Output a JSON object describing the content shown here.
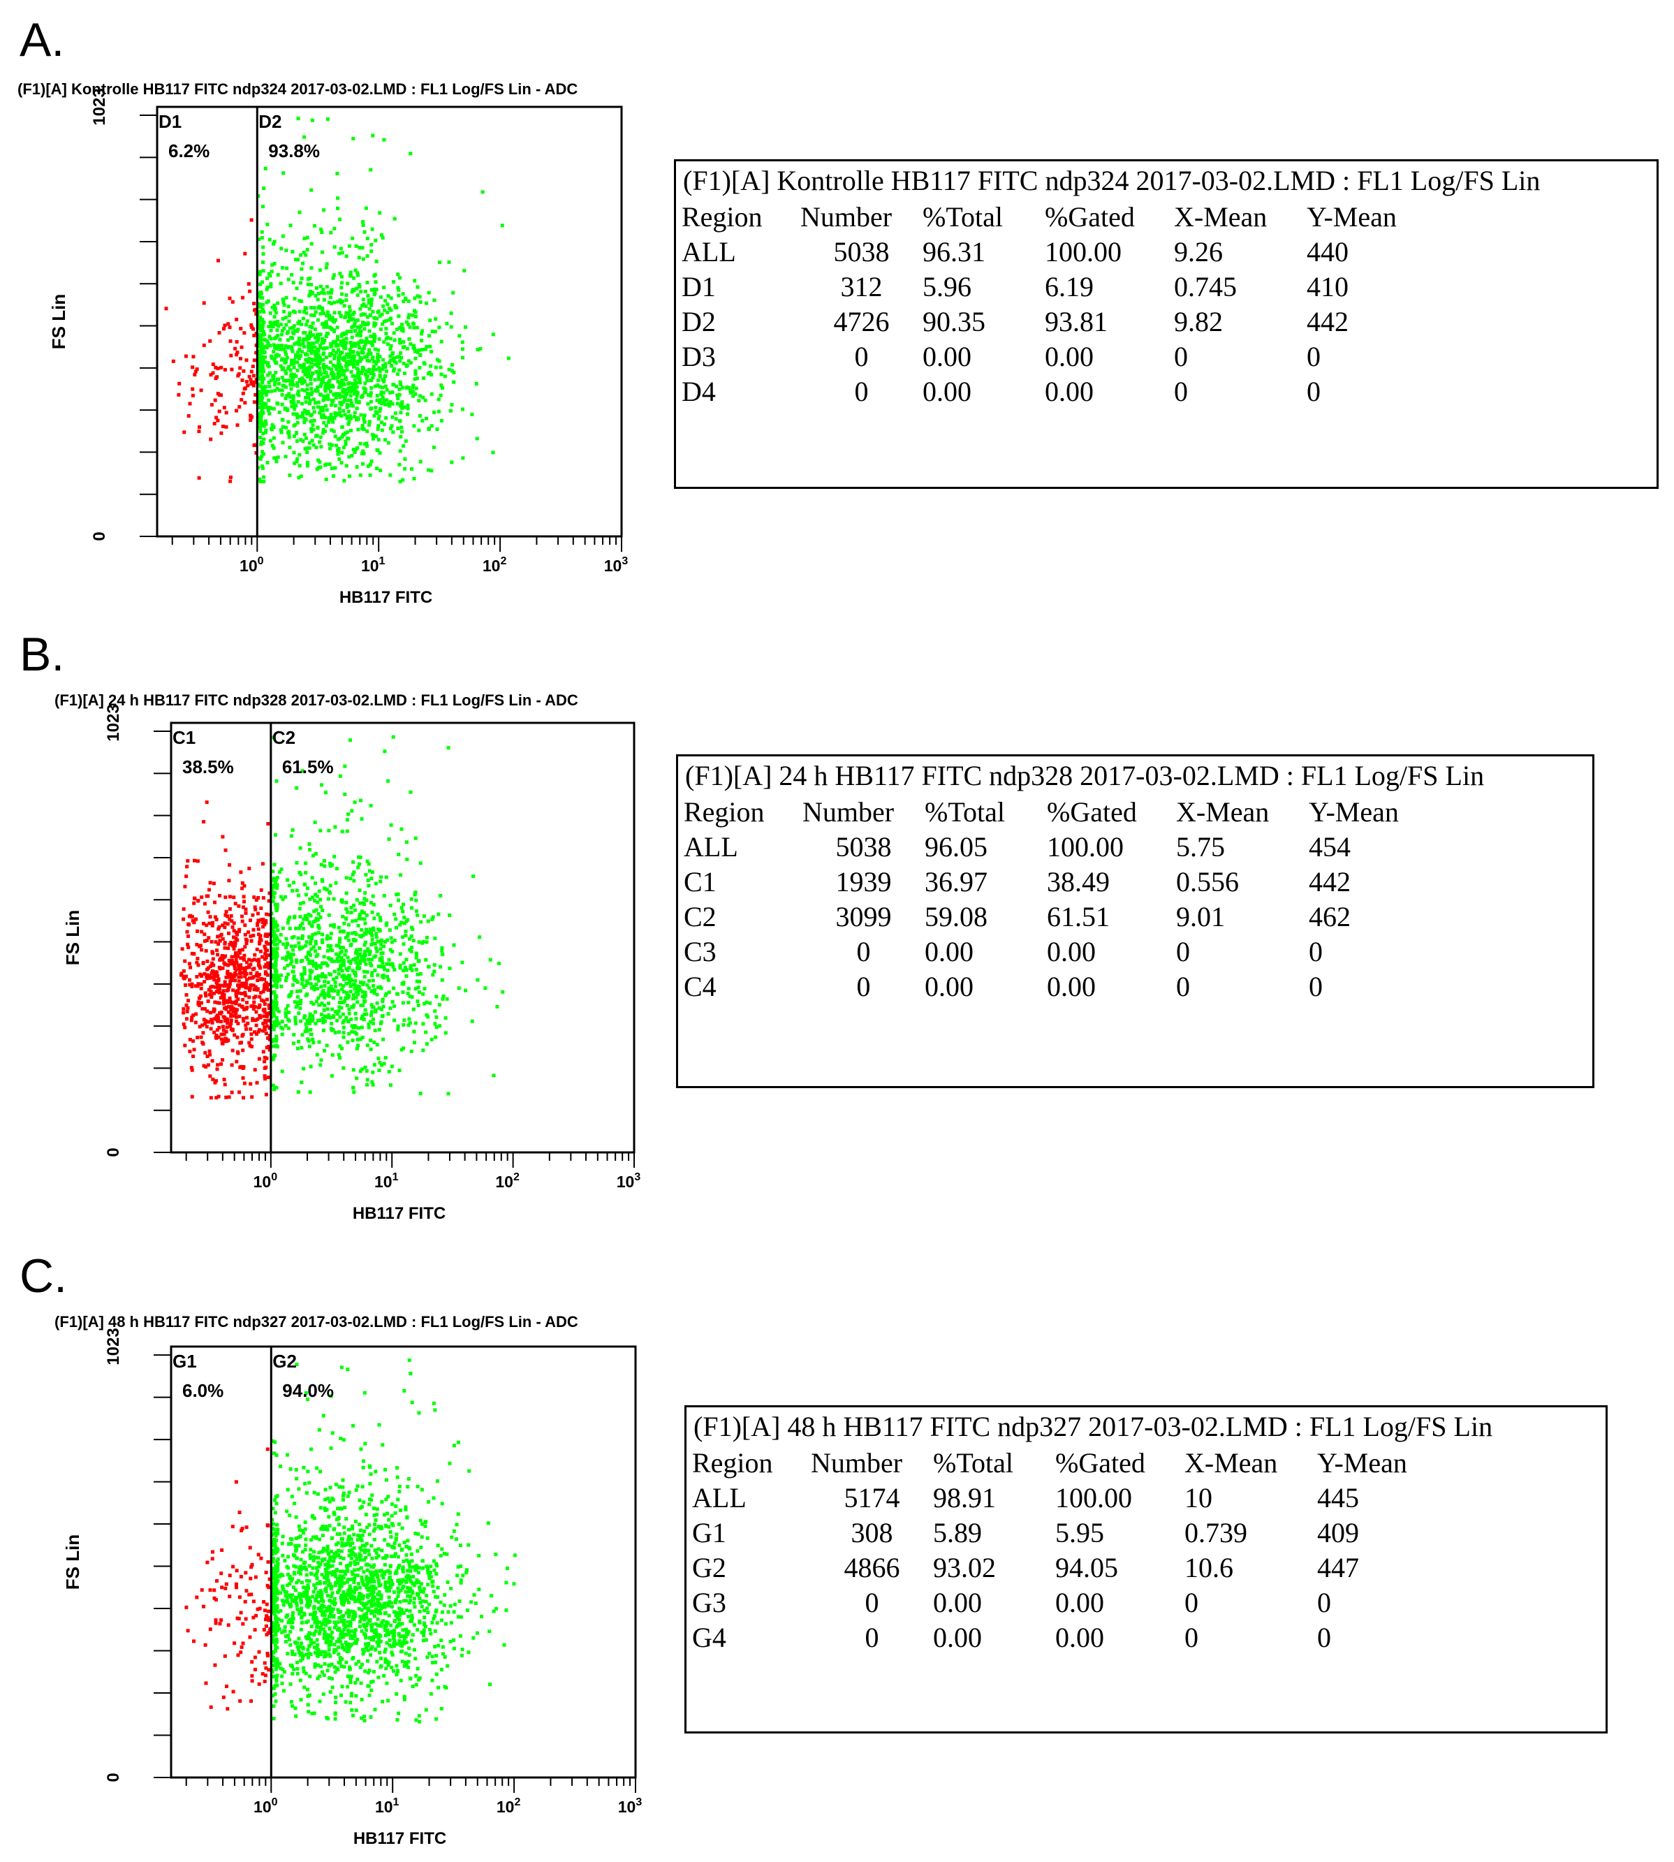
{
  "chart_data": [
    {
      "type": "scatter",
      "panel_label": "A.",
      "title": "(F1)[A] Kontrolle HB117 FITC ndp324 2017-03-02.LMD : FL1 Log/FS Lin - ADC",
      "xlabel": "HB117 FITC",
      "ylabel": "FS Lin",
      "x_scale": "log",
      "xlim": [
        0.15,
        1000
      ],
      "ylim": [
        0,
        1023
      ],
      "x_tick_labels": [
        "10^0",
        "10^1",
        "10^2",
        "10^3"
      ],
      "y_tick_labels": [
        "0",
        "1023"
      ],
      "gate_x": 1,
      "regions": [
        {
          "name": "D1",
          "pct": "6.2%",
          "color": "#ff0000"
        },
        {
          "name": "D2",
          "pct": "93.8%",
          "color": "#00ff00"
        }
      ],
      "series": [
        {
          "name": "D1",
          "color": "#ff0000",
          "count": 312,
          "x_mean": 0.745,
          "y_mean": 410
        },
        {
          "name": "D2",
          "color": "#00ff00",
          "count": 4726,
          "x_mean": 9.82,
          "y_mean": 442
        }
      ],
      "stats": {
        "title": "(F1)[A] Kontrolle HB117 FITC ndp324 2017-03-02.LMD : FL1 Log/FS Lin",
        "headers": [
          "Region",
          "Number",
          "%Total",
          "%Gated",
          "X-Mean",
          "Y-Mean"
        ],
        "rows": [
          [
            "ALL",
            "5038",
            "96.31",
            "100.00",
            "9.26",
            "440"
          ],
          [
            "D1",
            "312",
            "5.96",
            "6.19",
            "0.745",
            "410"
          ],
          [
            "D2",
            "4726",
            "90.35",
            "93.81",
            "9.82",
            "442"
          ],
          [
            "D3",
            "0",
            "0.00",
            "0.00",
            "0",
            "0"
          ],
          [
            "D4",
            "0",
            "0.00",
            "0.00",
            "0",
            "0"
          ]
        ]
      }
    },
    {
      "type": "scatter",
      "panel_label": "B.",
      "title": "(F1)[A] 24 h HB117 FITC ndp328 2017-03-02.LMD : FL1 Log/FS Lin - ADC",
      "xlabel": "HB117 FITC",
      "ylabel": "FS Lin",
      "x_scale": "log",
      "xlim": [
        0.15,
        1000
      ],
      "ylim": [
        0,
        1023
      ],
      "x_tick_labels": [
        "10^0",
        "10^1",
        "10^2",
        "10^3"
      ],
      "y_tick_labels": [
        "0",
        "1023"
      ],
      "gate_x": 1,
      "regions": [
        {
          "name": "C1",
          "pct": "38.5%",
          "color": "#ff0000"
        },
        {
          "name": "C2",
          "pct": "61.5%",
          "color": "#00ff00"
        }
      ],
      "series": [
        {
          "name": "C1",
          "color": "#ff0000",
          "count": 1939,
          "x_mean": 0.556,
          "y_mean": 442
        },
        {
          "name": "C2",
          "color": "#00ff00",
          "count": 3099,
          "x_mean": 9.01,
          "y_mean": 462
        }
      ],
      "stats": {
        "title": "(F1)[A] 24 h HB117 FITC ndp328 2017-03-02.LMD : FL1 Log/FS Lin",
        "headers": [
          "Region",
          "Number",
          "%Total",
          "%Gated",
          "X-Mean",
          "Y-Mean"
        ],
        "rows": [
          [
            "ALL",
            "5038",
            "96.05",
            "100.00",
            "5.75",
            "454"
          ],
          [
            "C1",
            "1939",
            "36.97",
            "38.49",
            "0.556",
            "442"
          ],
          [
            "C2",
            "3099",
            "59.08",
            "61.51",
            "9.01",
            "462"
          ],
          [
            "C3",
            "0",
            "0.00",
            "0.00",
            "0",
            "0"
          ],
          [
            "C4",
            "0",
            "0.00",
            "0.00",
            "0",
            "0"
          ]
        ]
      }
    },
    {
      "type": "scatter",
      "panel_label": "C.",
      "title": "(F1)[A] 48 h HB117 FITC ndp327 2017-03-02.LMD : FL1 Log/FS Lin - ADC",
      "xlabel": "HB117 FITC",
      "ylabel": "FS Lin",
      "x_scale": "log",
      "xlim": [
        0.15,
        1000
      ],
      "ylim": [
        0,
        1023
      ],
      "x_tick_labels": [
        "10^0",
        "10^1",
        "10^2",
        "10^3"
      ],
      "y_tick_labels": [
        "0",
        "1023"
      ],
      "gate_x": 1,
      "regions": [
        {
          "name": "G1",
          "pct": "6.0%",
          "color": "#ff0000"
        },
        {
          "name": "G2",
          "pct": "94.0%",
          "color": "#00ff00"
        }
      ],
      "series": [
        {
          "name": "G1",
          "color": "#ff0000",
          "count": 308,
          "x_mean": 0.739,
          "y_mean": 409
        },
        {
          "name": "G2",
          "color": "#00ff00",
          "count": 4866,
          "x_mean": 10.6,
          "y_mean": 447
        }
      ],
      "stats": {
        "title": "(F1)[A] 48 h HB117 FITC ndp327 2017-03-02.LMD : FL1 Log/FS Lin",
        "headers": [
          "Region",
          "Number",
          "%Total",
          "%Gated",
          "X-Mean",
          "Y-Mean"
        ],
        "rows": [
          [
            "ALL",
            "5174",
            "98.91",
            "100.00",
            "10",
            "445"
          ],
          [
            "G1",
            "308",
            "5.89",
            "5.95",
            "0.739",
            "409"
          ],
          [
            "G2",
            "4866",
            "93.02",
            "94.05",
            "10.6",
            "447"
          ],
          [
            "G3",
            "0",
            "0.00",
            "0.00",
            "0",
            "0"
          ],
          [
            "G4",
            "0",
            "0.00",
            "0.00",
            "0",
            "0"
          ]
        ]
      }
    }
  ]
}
